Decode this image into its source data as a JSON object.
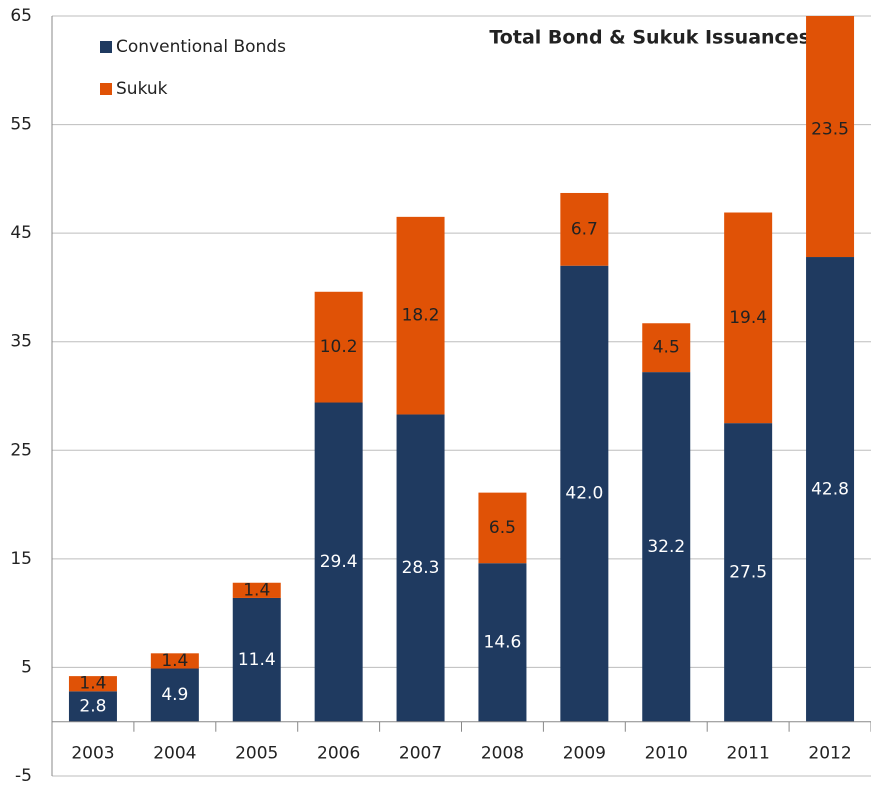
{
  "chart_data": {
    "type": "stacked_bar",
    "title": "Total Bond & Sukuk Issuances",
    "categories": [
      "2003",
      "2004",
      "2005",
      "2006",
      "2007",
      "2008",
      "2009",
      "2010",
      "2011",
      "2012"
    ],
    "series": [
      {
        "name": "Conventional Bonds",
        "color": "#1f3a60",
        "values": [
          2.8,
          4.9,
          11.4,
          29.4,
          28.3,
          14.6,
          42.0,
          32.2,
          27.5,
          42.8
        ],
        "value_labels": [
          "2.8",
          "4.9",
          "11.4",
          "29.4",
          "28.3",
          "14.6",
          "42.0",
          "32.2",
          "27.5",
          "42.8"
        ]
      },
      {
        "name": "Sukuk",
        "color": "#e05206",
        "values": [
          1.4,
          1.4,
          1.4,
          10.2,
          18.2,
          6.5,
          6.7,
          4.5,
          19.4,
          23.5
        ],
        "value_labels": [
          "1.4",
          "1.4",
          "1.4",
          "10.2",
          "18.2",
          "6.5",
          "6.7",
          "4.5",
          "19.4",
          "23.5"
        ]
      }
    ],
    "ylim": [
      -5,
      65
    ],
    "yticks": [
      -5,
      5,
      15,
      25,
      35,
      45,
      55,
      65
    ],
    "grid": true,
    "legend": "upper left"
  }
}
